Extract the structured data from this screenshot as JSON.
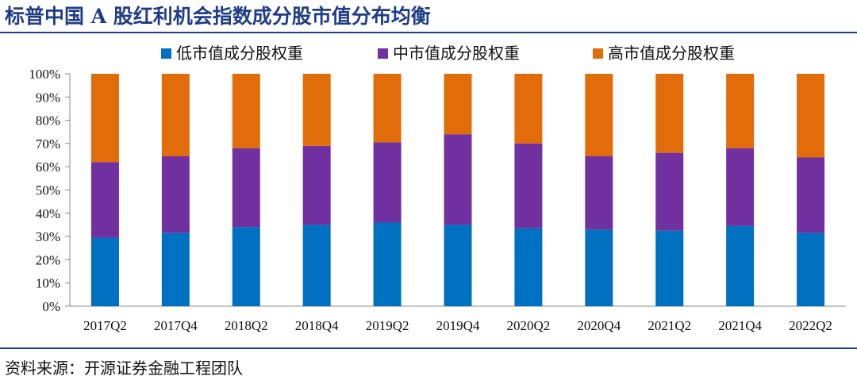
{
  "title": "标普中国 A 股红利机会指数成分股市值分布均衡",
  "source": "资料来源：开源证券金融工程团队",
  "colors": {
    "low": "#0070c0",
    "mid": "#7030a0",
    "high": "#e36c0a",
    "title": "#1f3c88"
  },
  "chart_data": {
    "type": "bar",
    "stacked": true,
    "legend_position": "top",
    "categories": [
      "2017Q2",
      "2017Q4",
      "2018Q2",
      "2018Q4",
      "2019Q2",
      "2019Q4",
      "2020Q2",
      "2020Q4",
      "2021Q2",
      "2021Q4",
      "2022Q2"
    ],
    "ylim": [
      0,
      100
    ],
    "yticks": [
      "0%",
      "10%",
      "20%",
      "30%",
      "40%",
      "50%",
      "60%",
      "70%",
      "80%",
      "90%",
      "100%"
    ],
    "series": [
      {
        "name": "低市值成分股权重",
        "color": "#0070c0",
        "values": [
          29.5,
          31.5,
          34.0,
          35.0,
          36.0,
          35.0,
          33.5,
          33.0,
          32.5,
          34.5,
          31.5
        ]
      },
      {
        "name": "中市值成分股权重",
        "color": "#7030a0",
        "values": [
          32.5,
          33.0,
          34.0,
          34.0,
          34.5,
          39.0,
          36.5,
          31.5,
          33.5,
          33.5,
          32.5
        ]
      },
      {
        "name": "高市值成分股权重",
        "color": "#e36c0a",
        "values": [
          38.0,
          35.5,
          32.0,
          31.0,
          29.5,
          26.0,
          30.0,
          35.5,
          34.0,
          32.0,
          36.0
        ]
      }
    ]
  }
}
